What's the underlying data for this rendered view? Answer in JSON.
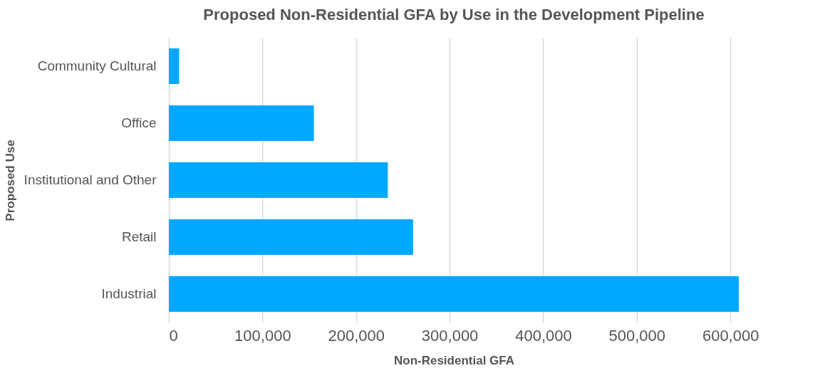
{
  "chart_data": {
    "type": "bar",
    "orientation": "horizontal",
    "title": "Proposed Non-Residential GFA by Use in the Development Pipeline",
    "xlabel": "Non-Residential GFA",
    "ylabel": "Proposed Use",
    "categories": [
      "Community Cultural",
      "Office",
      "Institutional and Other",
      "Retail",
      "Industrial"
    ],
    "values": [
      11000,
      155000,
      234000,
      261000,
      609000
    ],
    "color": "#00a8ff",
    "xlim": [
      0,
      609000
    ],
    "xticks": [
      {
        "value": 0,
        "label": "0"
      },
      {
        "value": 100000,
        "label": "100,000"
      },
      {
        "value": 200000,
        "label": "200,000"
      },
      {
        "value": 300000,
        "label": "300,000"
      },
      {
        "value": 400000,
        "label": "400,000"
      },
      {
        "value": 500000,
        "label": "500,000"
      },
      {
        "value": 600000,
        "label": "600,000"
      }
    ],
    "grid": "x"
  }
}
